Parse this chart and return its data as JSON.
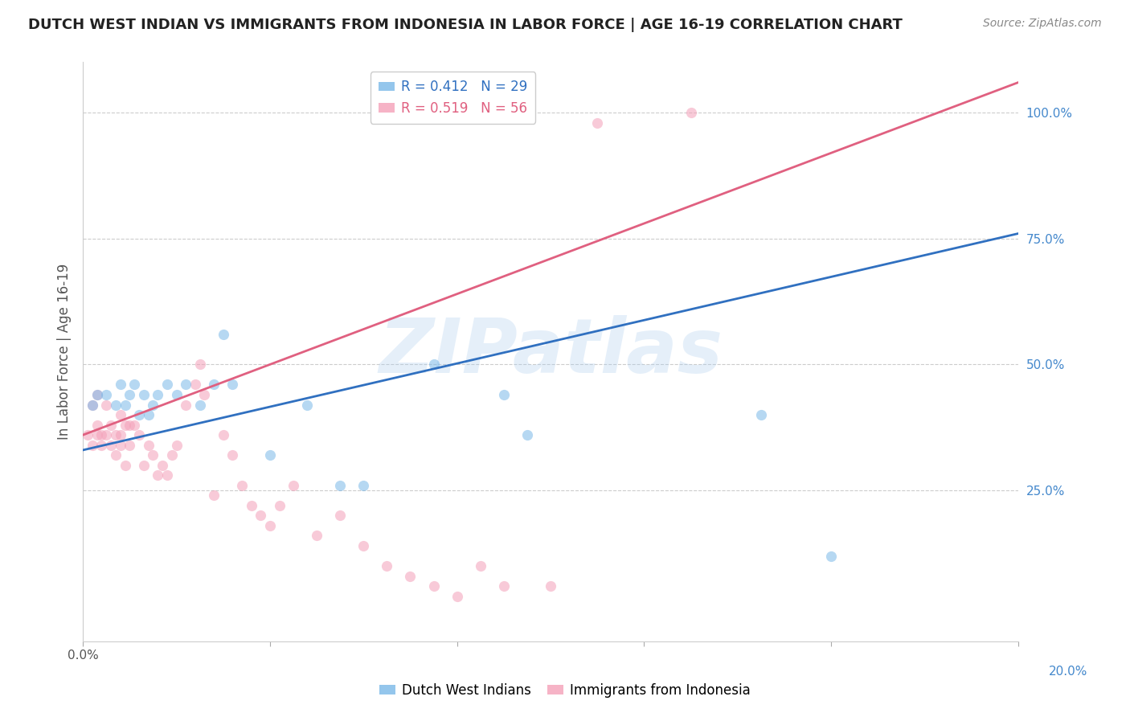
{
  "title": "DUTCH WEST INDIAN VS IMMIGRANTS FROM INDONESIA IN LABOR FORCE | AGE 16-19 CORRELATION CHART",
  "source_text": "Source: ZipAtlas.com",
  "ylabel": "In Labor Force | Age 16-19",
  "xmin": 0.0,
  "xmax": 0.2,
  "ymin": -0.05,
  "ymax": 1.1,
  "watermark": "ZIPatlas",
  "watermark_color": "#aaccee",
  "legend_r1": "R = 0.412",
  "legend_n1": "N = 29",
  "legend_r2": "R = 0.519",
  "legend_n2": "N = 56",
  "series1_color": "#7ab8e8",
  "series2_color": "#f4a0b8",
  "trendline1_color": "#3070c0",
  "trendline2_color": "#e06080",
  "grid_color": "#cccccc",
  "title_color": "#222222",
  "axis_label_color": "#555555",
  "right_axis_color": "#4488cc",
  "series1_x": [
    0.002,
    0.003,
    0.005,
    0.007,
    0.008,
    0.009,
    0.01,
    0.011,
    0.012,
    0.013,
    0.014,
    0.015,
    0.016,
    0.018,
    0.02,
    0.022,
    0.025,
    0.028,
    0.03,
    0.032,
    0.04,
    0.048,
    0.055,
    0.06,
    0.075,
    0.09,
    0.095,
    0.145,
    0.16
  ],
  "series1_y": [
    0.42,
    0.44,
    0.44,
    0.42,
    0.46,
    0.42,
    0.44,
    0.46,
    0.4,
    0.44,
    0.4,
    0.42,
    0.44,
    0.46,
    0.44,
    0.46,
    0.42,
    0.46,
    0.56,
    0.46,
    0.32,
    0.42,
    0.26,
    0.26,
    0.5,
    0.44,
    0.36,
    0.4,
    0.12
  ],
  "series2_x": [
    0.001,
    0.002,
    0.002,
    0.003,
    0.003,
    0.003,
    0.004,
    0.004,
    0.005,
    0.005,
    0.006,
    0.006,
    0.007,
    0.007,
    0.008,
    0.008,
    0.008,
    0.009,
    0.009,
    0.01,
    0.01,
    0.011,
    0.012,
    0.013,
    0.014,
    0.015,
    0.016,
    0.017,
    0.018,
    0.019,
    0.02,
    0.022,
    0.024,
    0.025,
    0.026,
    0.028,
    0.03,
    0.032,
    0.034,
    0.036,
    0.038,
    0.04,
    0.042,
    0.045,
    0.05,
    0.055,
    0.06,
    0.065,
    0.07,
    0.075,
    0.08,
    0.085,
    0.09,
    0.1,
    0.11,
    0.13
  ],
  "series2_y": [
    0.36,
    0.42,
    0.34,
    0.44,
    0.38,
    0.36,
    0.36,
    0.34,
    0.42,
    0.36,
    0.38,
    0.34,
    0.32,
    0.36,
    0.4,
    0.36,
    0.34,
    0.38,
    0.3,
    0.38,
    0.34,
    0.38,
    0.36,
    0.3,
    0.34,
    0.32,
    0.28,
    0.3,
    0.28,
    0.32,
    0.34,
    0.42,
    0.46,
    0.5,
    0.44,
    0.24,
    0.36,
    0.32,
    0.26,
    0.22,
    0.2,
    0.18,
    0.22,
    0.26,
    0.16,
    0.2,
    0.14,
    0.1,
    0.08,
    0.06,
    0.04,
    0.1,
    0.06,
    0.06,
    0.98,
    1.0
  ],
  "trendline1_x": [
    0.0,
    0.2
  ],
  "trendline1_y": [
    0.33,
    0.76
  ],
  "trendline2_x": [
    0.0,
    0.2
  ],
  "trendline2_y": [
    0.36,
    1.06
  ],
  "bg_color": "#ffffff",
  "marker_size": 90,
  "marker_alpha": 0.55,
  "marker_edgewidth": 0.0
}
